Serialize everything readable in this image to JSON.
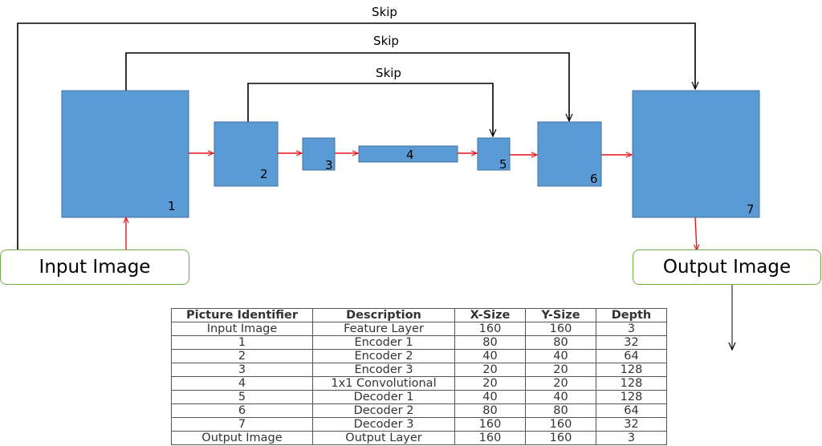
{
  "skip_labels": [
    "Skip",
    "Skip",
    "Skip"
  ],
  "blocks": [
    {
      "label": "1"
    },
    {
      "label": "2"
    },
    {
      "label": "3"
    },
    {
      "label": "4"
    },
    {
      "label": "5"
    },
    {
      "label": "6"
    },
    {
      "label": "7"
    }
  ],
  "input_box": {
    "label": "Input Image"
  },
  "output_box": {
    "label": "Output Image"
  },
  "colors": {
    "block_fill": "#5b9bd5",
    "flow_arrow": "#e8121d",
    "skip_line": "#000000",
    "io_border": "#70ad47"
  },
  "table": {
    "headers": [
      "Picture Identifier",
      "Description",
      "X-Size",
      "Y-Size",
      "Depth"
    ],
    "rows": [
      [
        "Input Image",
        "Feature Layer",
        "160",
        "160",
        "3"
      ],
      [
        "1",
        "Encoder 1",
        "80",
        "80",
        "32"
      ],
      [
        "2",
        "Encoder 2",
        "40",
        "40",
        "64"
      ],
      [
        "3",
        "Encoder 3",
        "20",
        "20",
        "128"
      ],
      [
        "4",
        "1x1 Convolutional",
        "20",
        "20",
        "128"
      ],
      [
        "5",
        "Decoder 1",
        "40",
        "40",
        "128"
      ],
      [
        "6",
        "Decoder 2",
        "80",
        "80",
        "64"
      ],
      [
        "7",
        "Decoder 3",
        "160",
        "160",
        "32"
      ],
      [
        "Output Image",
        "Output Layer",
        "160",
        "160",
        "3"
      ]
    ]
  }
}
